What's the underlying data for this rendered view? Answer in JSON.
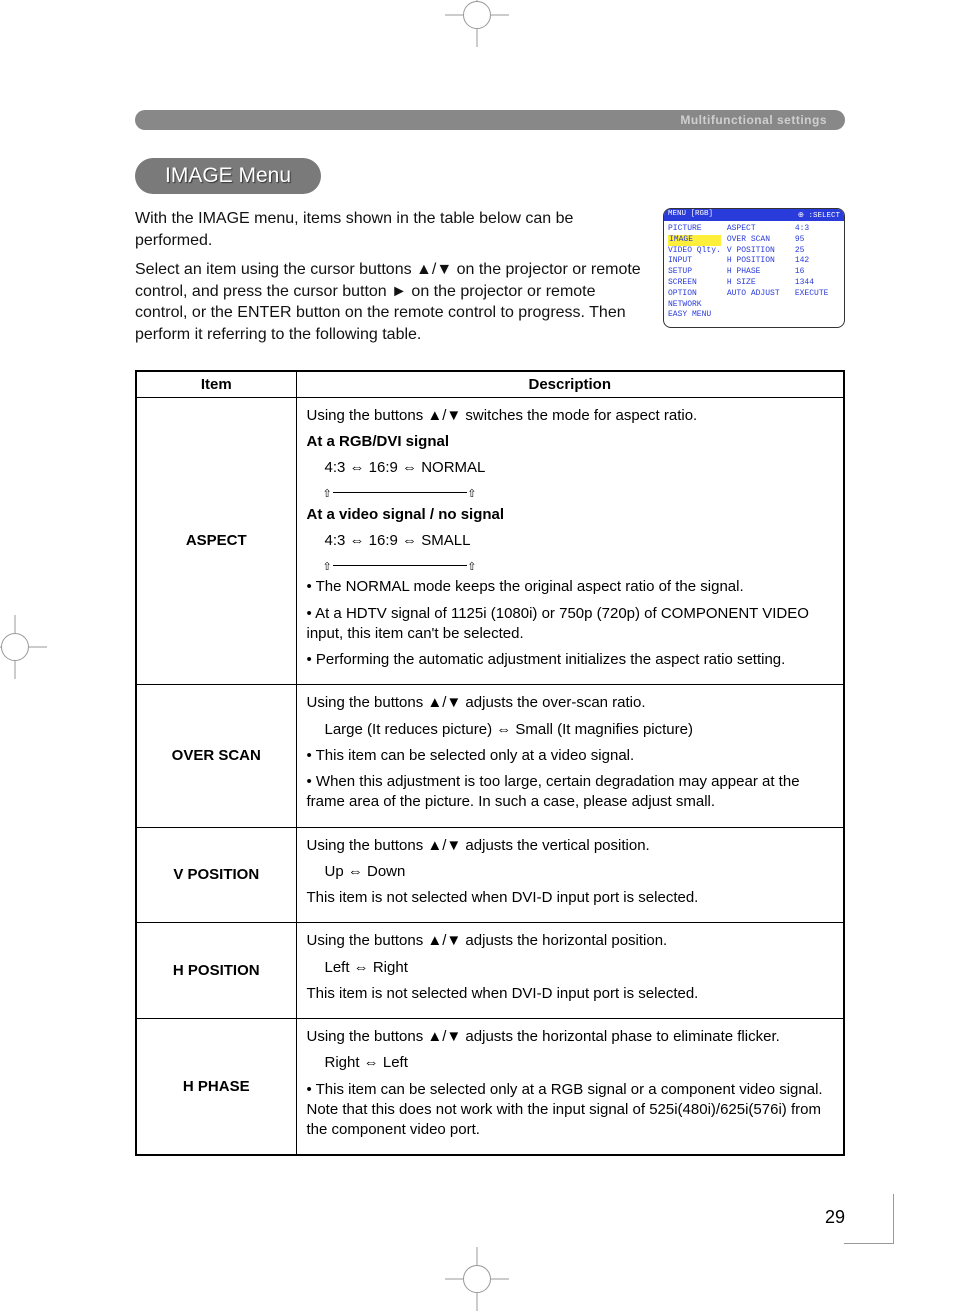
{
  "section_label": "Multifunctional settings",
  "pill_title": "IMAGE Menu",
  "intro_p1": "With the IMAGE menu, items shown in the table below can be performed.",
  "intro_p2": "Select an item using the cursor buttons ▲/▼ on the projector or remote control, and press the cursor button ► on the projector or remote control, or the ENTER button on the remote control to progress. Then perform it referring to the following table.",
  "osd": {
    "header_left": "MENU [RGB]",
    "header_right": "⊕ :SELECT",
    "left_items": [
      "PICTURE",
      "IMAGE",
      "VIDEO Qlty.",
      "INPUT",
      "SETUP",
      "SCREEN",
      "OPTION",
      "NETWORK",
      "EASY MENU"
    ],
    "right_rows": [
      {
        "lbl": "ASPECT",
        "val": "4:3"
      },
      {
        "lbl": "OVER SCAN",
        "val": "95"
      },
      {
        "lbl": "V POSITION",
        "val": "25"
      },
      {
        "lbl": "H POSITION",
        "val": "142"
      },
      {
        "lbl": "H PHASE",
        "val": "16"
      },
      {
        "lbl": "H SIZE",
        "val": "1344"
      },
      {
        "lbl": "AUTO ADJUST",
        "val": "EXECUTE"
      }
    ],
    "highlight_index": 1
  },
  "table": {
    "head_item": "Item",
    "head_desc": "Description",
    "rows": [
      {
        "item": "ASPECT",
        "lines": [
          {
            "t": "Using the buttons ▲/▼ switches the mode for aspect ratio."
          },
          {
            "t": "At a RGB/DVI signal",
            "bold": true
          },
          {
            "t": "4:3 ⇔ 16:9 ⇔ NORMAL",
            "indent": true
          },
          {
            "loop": true
          },
          {
            "t": "At a video signal / no signal",
            "bold": true
          },
          {
            "t": "4:3 ⇔ 16:9 ⇔ SMALL",
            "indent": true
          },
          {
            "loop": true
          },
          {
            "t": "• The NORMAL mode keeps the original aspect ratio of the signal."
          },
          {
            "t": "• At a HDTV signal of 1125i (1080i) or 750p (720p) of COMPONENT VIDEO input, this item can't be selected."
          },
          {
            "t": "• Performing the automatic adjustment initializes the aspect ratio setting."
          }
        ]
      },
      {
        "item": "OVER SCAN",
        "lines": [
          {
            "t": "Using the buttons ▲/▼ adjusts the over-scan ratio."
          },
          {
            "t": "Large (It reduces picture) ⇔ Small (It magnifies picture)",
            "indent": true
          },
          {
            "t": "• This item can be selected only at a video signal."
          },
          {
            "t": "• When this adjustment is too large, certain degradation may appear at the frame area of the picture. In such a case, please adjust small."
          }
        ]
      },
      {
        "item": "V POSITION",
        "lines": [
          {
            "t": "Using the buttons ▲/▼ adjusts the vertical position."
          },
          {
            "t": "Up ⇔ Down",
            "indent": true
          },
          {
            "t": "This item is not selected when DVI-D input port is selected."
          }
        ]
      },
      {
        "item": "H POSITION",
        "lines": [
          {
            "t": "Using the buttons ▲/▼ adjusts the horizontal position."
          },
          {
            "t": "Left ⇔ Right",
            "indent": true
          },
          {
            "t": "This item is not selected when DVI-D input port is selected."
          }
        ]
      },
      {
        "item": "H PHASE",
        "lines": [
          {
            "t": "Using the buttons ▲/▼ adjusts the horizontal phase to eliminate flicker."
          },
          {
            "t": "Right ⇔ Left",
            "indent": true
          },
          {
            "t": "• This item can be selected only at a RGB signal or a component video signal. Note that this does not work with the input signal of 525i(480i)/625i(576i) from the component video port."
          }
        ]
      }
    ]
  },
  "page_number": "29",
  "colors": {
    "section_bg": "#888888",
    "section_fg": "#cfcfcf",
    "pill_bg": "#7a7a7a",
    "pill_fg": "#ffffff",
    "osd_header_bg": "#2a3bdc",
    "osd_text": "#2a3bdc",
    "osd_highlight": "#ffef3a",
    "border": "#000000"
  }
}
